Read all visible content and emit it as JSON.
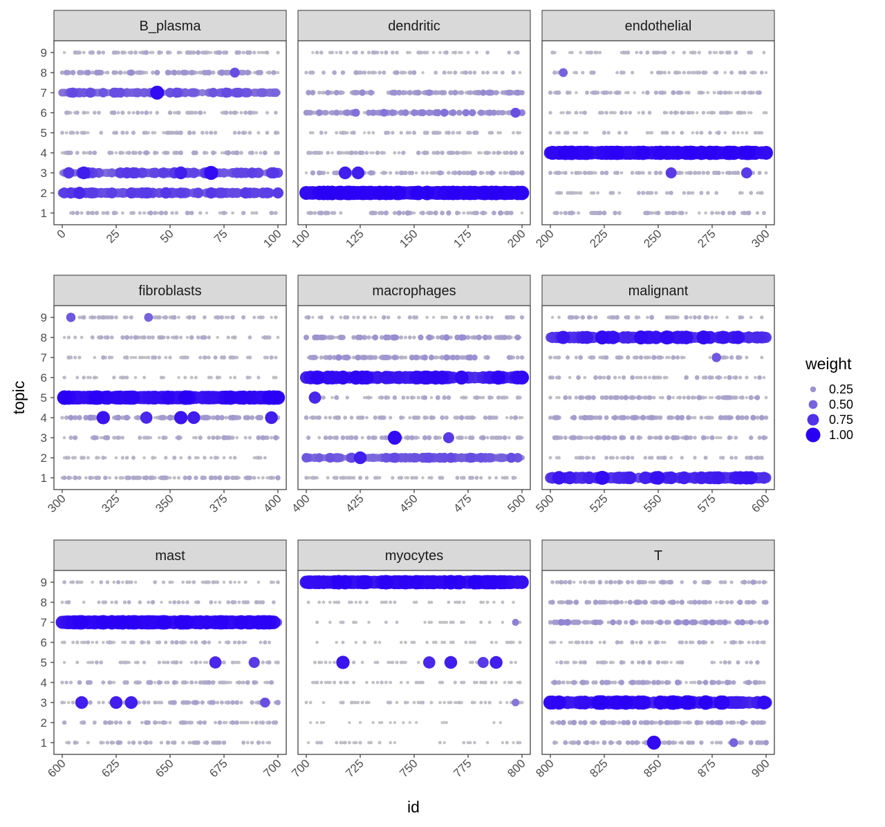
{
  "chart_data": {
    "type": "scatter",
    "xlabel": "id",
    "ylabel": "topic",
    "legend": {
      "title": "weight",
      "position": "right",
      "entries": [
        {
          "label": "0.25",
          "value": 0.25
        },
        {
          "label": "0.50",
          "value": 0.5
        },
        {
          "label": "0.75",
          "value": 0.75
        },
        {
          "label": "1.00",
          "value": 1.0
        }
      ],
      "color_low": "#c4c4c4",
      "color_high": "#2a00f5"
    },
    "y_ticks": [
      1,
      2,
      3,
      4,
      5,
      6,
      7,
      8,
      9
    ],
    "panels": [
      {
        "name": "B_plasma",
        "xlim": [
          0,
          100
        ],
        "x_ticks": [
          0,
          25,
          50,
          75,
          100
        ],
        "dominant": [
          {
            "topic": 2,
            "level": 0.55
          },
          {
            "topic": 3,
            "level": 0.55
          },
          {
            "topic": 7,
            "level": 0.45
          }
        ],
        "highlights": [
          {
            "x": 44,
            "topic": 7,
            "weight": 0.95
          },
          {
            "x": 80,
            "topic": 8,
            "weight": 0.6
          },
          {
            "x": 10,
            "topic": 3,
            "weight": 0.85
          },
          {
            "x": 55,
            "topic": 3,
            "weight": 0.85
          },
          {
            "x": 69,
            "topic": 3,
            "weight": 0.95
          },
          {
            "x": 8,
            "topic": 2,
            "weight": 0.8
          },
          {
            "x": 32,
            "topic": 2,
            "weight": 0.7
          }
        ],
        "activity": {
          "1": 0.15,
          "4": 0.18,
          "5": 0.12,
          "6": 0.14,
          "8": 0.28,
          "9": 0.15
        }
      },
      {
        "name": "dendritic",
        "xlim": [
          100,
          200
        ],
        "x_ticks": [
          100,
          125,
          150,
          175,
          200
        ],
        "dominant": [
          {
            "topic": 2,
            "level": 0.95
          }
        ],
        "highlights": [
          {
            "x": 118,
            "topic": 3,
            "weight": 0.85
          },
          {
            "x": 124,
            "topic": 3,
            "weight": 0.85
          },
          {
            "x": 197,
            "topic": 6,
            "weight": 0.6
          }
        ],
        "activity": {
          "1": 0.18,
          "3": 0.22,
          "4": 0.14,
          "5": 0.12,
          "6": 0.4,
          "7": 0.28,
          "8": 0.15,
          "9": 0.1
        }
      },
      {
        "name": "endothelial",
        "xlim": [
          200,
          300
        ],
        "x_ticks": [
          200,
          225,
          250,
          275,
          300
        ],
        "dominant": [
          {
            "topic": 4,
            "level": 0.95
          }
        ],
        "highlights": [
          {
            "x": 256,
            "topic": 3,
            "weight": 0.7
          },
          {
            "x": 291,
            "topic": 3,
            "weight": 0.7
          },
          {
            "x": 206,
            "topic": 8,
            "weight": 0.5
          }
        ],
        "activity": {
          "1": 0.16,
          "2": 0.1,
          "3": 0.15,
          "5": 0.1,
          "6": 0.1,
          "7": 0.15,
          "8": 0.12,
          "9": 0.1
        }
      },
      {
        "name": "fibroblasts",
        "xlim": [
          300,
          400
        ],
        "x_ticks": [
          300,
          325,
          350,
          375,
          400
        ],
        "dominant": [
          {
            "topic": 5,
            "level": 0.95
          }
        ],
        "highlights": [
          {
            "x": 319,
            "topic": 4,
            "weight": 0.9
          },
          {
            "x": 339,
            "topic": 4,
            "weight": 0.8
          },
          {
            "x": 355,
            "topic": 4,
            "weight": 0.9
          },
          {
            "x": 361,
            "topic": 4,
            "weight": 0.85
          },
          {
            "x": 397,
            "topic": 4,
            "weight": 0.85
          },
          {
            "x": 304,
            "topic": 9,
            "weight": 0.55
          },
          {
            "x": 340,
            "topic": 9,
            "weight": 0.5
          }
        ],
        "activity": {
          "1": 0.18,
          "2": 0.1,
          "3": 0.18,
          "4": 0.28,
          "6": 0.08,
          "7": 0.12,
          "8": 0.15,
          "9": 0.15
        }
      },
      {
        "name": "macrophages",
        "xlim": [
          400,
          500
        ],
        "x_ticks": [
          400,
          425,
          450,
          475,
          500
        ],
        "dominant": [
          {
            "topic": 6,
            "level": 0.8
          },
          {
            "topic": 2,
            "level": 0.45
          }
        ],
        "highlights": [
          {
            "x": 404,
            "topic": 5,
            "weight": 0.8
          },
          {
            "x": 441,
            "topic": 3,
            "weight": 0.95
          },
          {
            "x": 425,
            "topic": 2,
            "weight": 0.85
          },
          {
            "x": 466,
            "topic": 3,
            "weight": 0.7
          }
        ],
        "activity": {
          "1": 0.1,
          "3": 0.2,
          "4": 0.16,
          "5": 0.15,
          "7": 0.28,
          "8": 0.28,
          "9": 0.12
        }
      },
      {
        "name": "malignant",
        "xlim": [
          500,
          600
        ],
        "x_ticks": [
          500,
          525,
          550,
          575,
          600
        ],
        "dominant": [
          {
            "topic": 8,
            "level": 0.75
          },
          {
            "topic": 1,
            "level": 0.75
          }
        ],
        "highlights": [
          {
            "x": 524,
            "topic": 8,
            "weight": 0.95
          },
          {
            "x": 542,
            "topic": 8,
            "weight": 0.95
          },
          {
            "x": 554,
            "topic": 8,
            "weight": 0.95
          },
          {
            "x": 571,
            "topic": 8,
            "weight": 0.95
          },
          {
            "x": 524,
            "topic": 1,
            "weight": 0.95
          },
          {
            "x": 577,
            "topic": 7,
            "weight": 0.55
          }
        ],
        "activity": {
          "2": 0.12,
          "3": 0.2,
          "4": 0.24,
          "5": 0.2,
          "6": 0.16,
          "7": 0.15,
          "9": 0.15
        }
      },
      {
        "name": "mast",
        "xlim": [
          600,
          700
        ],
        "x_ticks": [
          600,
          625,
          650,
          675,
          700
        ],
        "dominant": [
          {
            "topic": 7,
            "level": 0.95
          }
        ],
        "highlights": [
          {
            "x": 609,
            "topic": 3,
            "weight": 0.85
          },
          {
            "x": 625,
            "topic": 3,
            "weight": 0.85
          },
          {
            "x": 632,
            "topic": 3,
            "weight": 0.85
          },
          {
            "x": 671,
            "topic": 5,
            "weight": 0.8
          },
          {
            "x": 689,
            "topic": 5,
            "weight": 0.7
          },
          {
            "x": 694,
            "topic": 3,
            "weight": 0.6
          }
        ],
        "activity": {
          "1": 0.15,
          "2": 0.16,
          "3": 0.2,
          "4": 0.18,
          "5": 0.1,
          "6": 0.12,
          "8": 0.12,
          "9": 0.1
        }
      },
      {
        "name": "myocytes",
        "xlim": [
          700,
          800
        ],
        "x_ticks": [
          700,
          725,
          750,
          775,
          800
        ],
        "dominant": [
          {
            "topic": 9,
            "level": 1.0
          }
        ],
        "highlights": [
          {
            "x": 717,
            "topic": 5,
            "weight": 0.9
          },
          {
            "x": 757,
            "topic": 5,
            "weight": 0.8
          },
          {
            "x": 767,
            "topic": 5,
            "weight": 0.85
          },
          {
            "x": 782,
            "topic": 5,
            "weight": 0.7
          },
          {
            "x": 788,
            "topic": 5,
            "weight": 0.85
          },
          {
            "x": 797,
            "topic": 3,
            "weight": 0.4
          },
          {
            "x": 797,
            "topic": 7,
            "weight": 0.35
          }
        ],
        "activity": {
          "1": 0.05,
          "3": 0.06,
          "4": 0.06,
          "5": 0.05,
          "6": 0.04,
          "7": 0.04,
          "8": 0.04
        }
      },
      {
        "name": "T",
        "xlim": [
          800,
          900
        ],
        "x_ticks": [
          800,
          825,
          850,
          875,
          900
        ],
        "dominant": [
          {
            "topic": 3,
            "level": 0.85
          }
        ],
        "highlights": [
          {
            "x": 848,
            "topic": 1,
            "weight": 0.95
          },
          {
            "x": 885,
            "topic": 1,
            "weight": 0.5
          }
        ],
        "activity": {
          "1": 0.2,
          "2": 0.22,
          "4": 0.25,
          "5": 0.12,
          "6": 0.12,
          "7": 0.3,
          "8": 0.22,
          "9": 0.18
        }
      }
    ]
  }
}
